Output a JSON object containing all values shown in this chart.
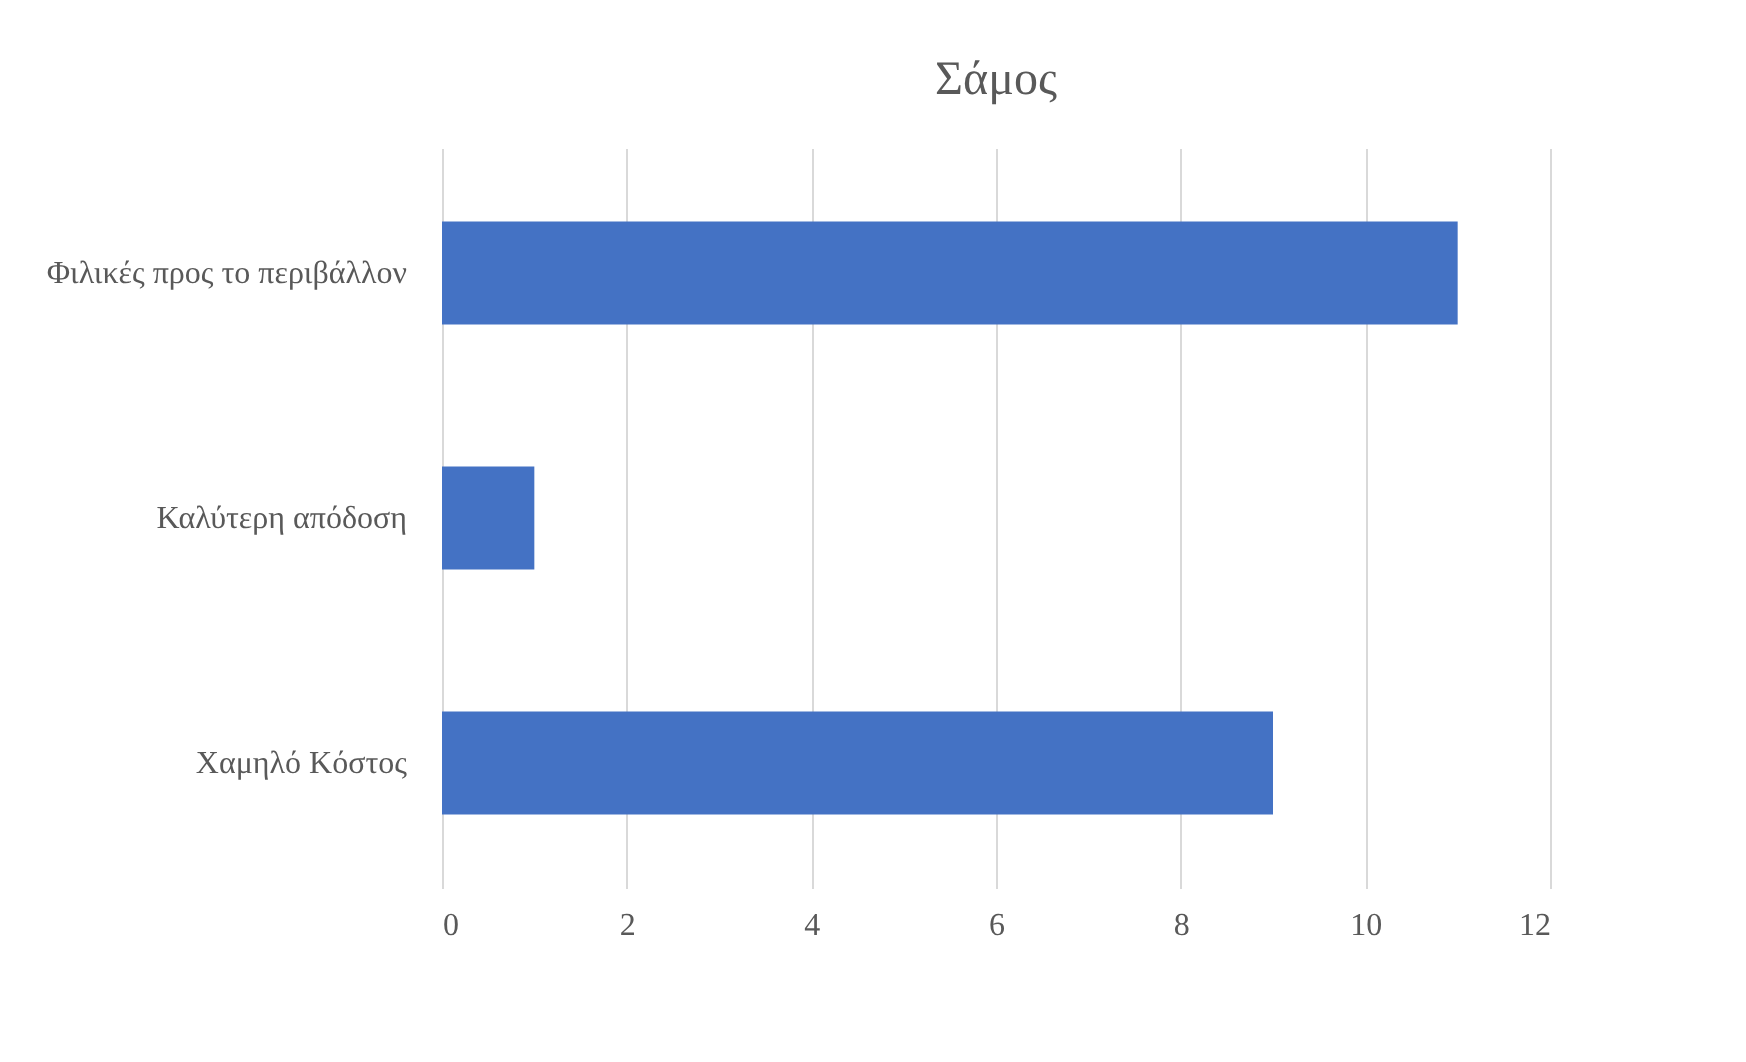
{
  "chart_data": {
    "type": "bar",
    "orientation": "horizontal",
    "title": "Σάμος",
    "categories": [
      "Φιλικές προς το περιβάλλον",
      "Καλύτερη απόδοση",
      "Χαμηλό Κόστος"
    ],
    "values": [
      11,
      1,
      9
    ],
    "color": "#4472c4",
    "xlim": [
      0,
      12
    ],
    "xticks": [
      0,
      2,
      4,
      6,
      8,
      10,
      12
    ],
    "grid": "x"
  }
}
